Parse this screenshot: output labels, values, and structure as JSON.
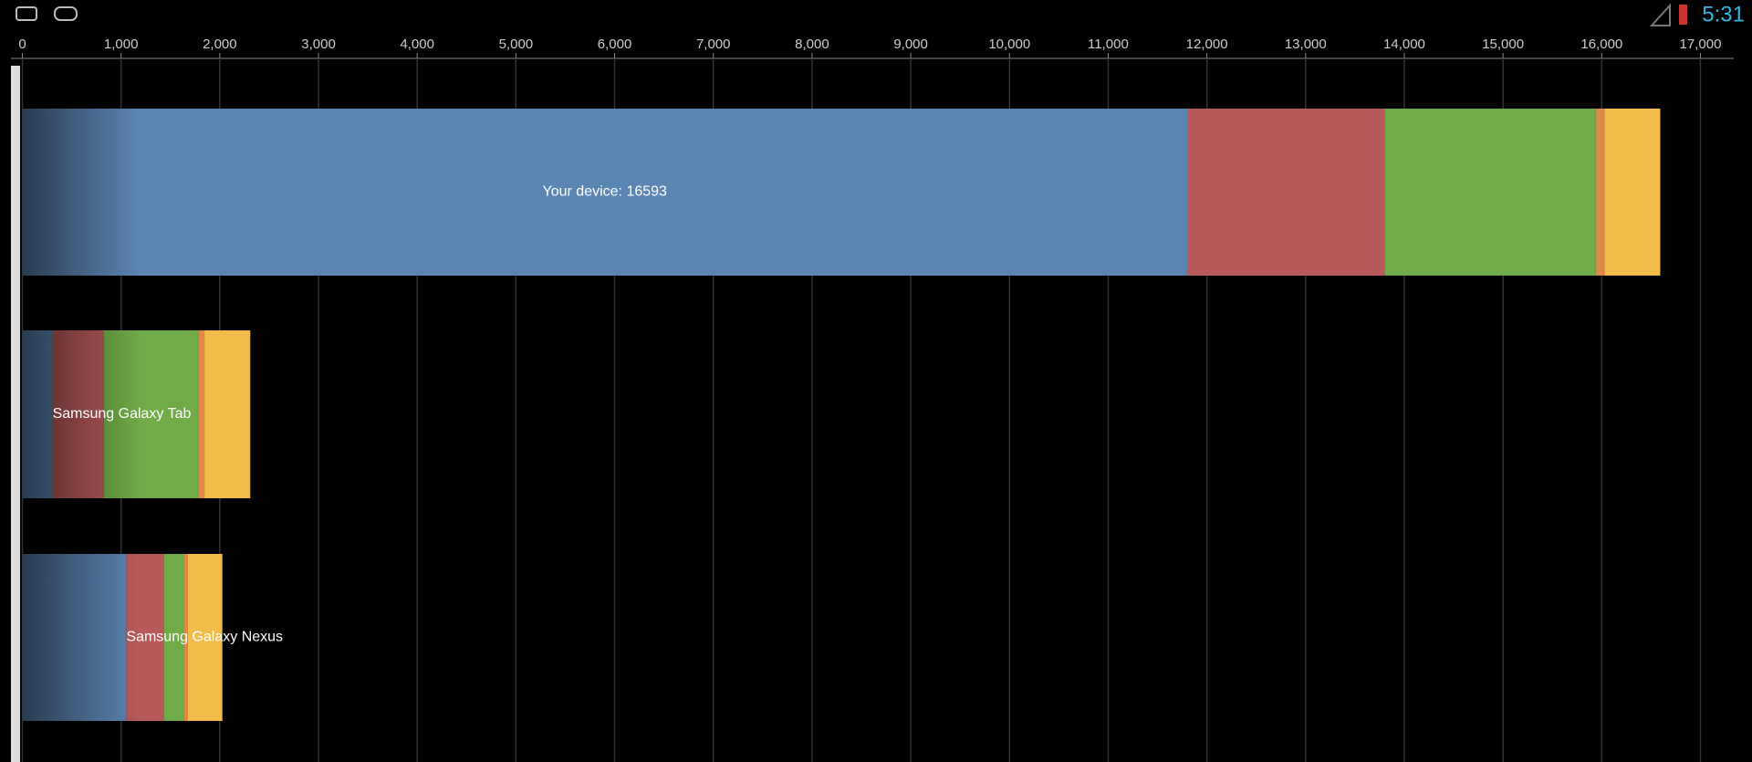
{
  "status_bar": {
    "time": "5:31"
  },
  "chart_data": {
    "type": "bar",
    "orientation": "horizontal",
    "stacked": true,
    "categories": [
      "Your device: 16593",
      "Samsung Galaxy Tab",
      "Samsung Galaxy Nexus"
    ],
    "series": [
      {
        "color": "#5b86b4",
        "values": [
          11800,
          306,
          1053
        ]
      },
      {
        "color": "#b85a5a",
        "values": [
          2000,
          520,
          384
        ]
      },
      {
        "color": "#6fab47",
        "values": [
          2140,
          962,
          204
        ]
      },
      {
        "color": "#e0884a",
        "values": [
          90,
          57,
          34
        ]
      },
      {
        "color": "#f2bc48",
        "values": [
          563,
          464,
          351
        ]
      }
    ],
    "xlim": [
      0,
      17000
    ],
    "xticks": [
      0,
      {
        "value": 1000,
        "label": "1,000"
      },
      {
        "value": 2000,
        "label": "2,000"
      },
      {
        "value": 3000,
        "label": "3,000"
      },
      {
        "value": 4000,
        "label": "4,000"
      },
      {
        "value": 5000,
        "label": "5,000"
      },
      {
        "value": 6000,
        "label": "6,000"
      },
      {
        "value": 7000,
        "label": "7,000"
      },
      {
        "value": 8000,
        "label": "8,000"
      },
      {
        "value": 9000,
        "label": "9,000"
      },
      {
        "value": 10000,
        "label": "10,000"
      },
      {
        "value": 11000,
        "label": "11,000"
      },
      {
        "value": 12000,
        "label": "12,000"
      },
      {
        "value": 13000,
        "label": "13,000"
      },
      {
        "value": 14000,
        "label": "14,000"
      },
      {
        "value": 15000,
        "label": "15,000"
      },
      {
        "value": 16000,
        "label": "16,000"
      },
      {
        "value": 17000,
        "label": "17,000"
      }
    ],
    "grid": true
  }
}
